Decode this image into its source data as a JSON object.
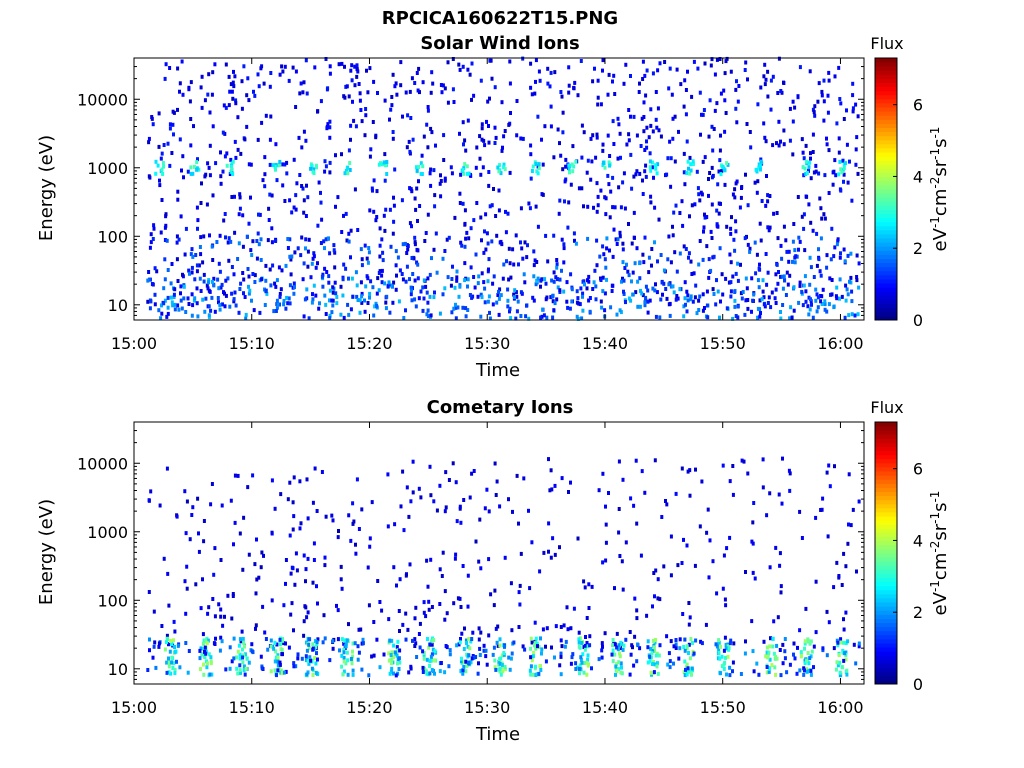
{
  "figure_title": "RPCICA160622T15.PNG",
  "colorbar": {
    "title": "Flux",
    "label_parts": [
      "eV",
      "-1",
      "cm",
      "-2",
      "sr",
      "-1",
      "s",
      "-1"
    ],
    "ticks": [
      "0",
      "2",
      "4",
      "6"
    ],
    "range": [
      0,
      7.3
    ],
    "colormap": "jet"
  },
  "chart_data": [
    {
      "type": "heatmap",
      "title": "Solar Wind Ions",
      "xlabel": "Time",
      "ylabel": "Energy (eV)",
      "yscale": "log",
      "xlim": [
        "15:00",
        "16:02"
      ],
      "ylim": [
        6,
        40000
      ],
      "xticks": [
        "15:00",
        "15:10",
        "15:20",
        "15:30",
        "15:40",
        "15:50",
        "16:00"
      ],
      "yticks": [
        "10",
        "100",
        "1000",
        "10000"
      ],
      "grid": false,
      "features": {
        "background_scatter_energy_range_eV": [
          10,
          40000
        ],
        "background_flux": 0.8,
        "bursts": {
          "energy_eV": 1000,
          "flux": 2.8,
          "times": [
            "15:02",
            "15:05",
            "15:08",
            "15:12",
            "15:15",
            "15:18",
            "15:21",
            "15:24",
            "15:28",
            "15:31",
            "15:34",
            "15:37",
            "15:40",
            "15:44",
            "15:47",
            "15:50",
            "15:53",
            "15:57",
            "16:00"
          ]
        },
        "low_energy_band": {
          "energy_eV": [
            6,
            25
          ],
          "flux": 1.8
        }
      }
    },
    {
      "type": "heatmap",
      "title": "Cometary Ions",
      "xlabel": "Time",
      "ylabel": "Energy (eV)",
      "yscale": "log",
      "xlim": [
        "15:00",
        "16:02"
      ],
      "ylim": [
        6,
        40000
      ],
      "xticks": [
        "15:00",
        "15:10",
        "15:20",
        "15:30",
        "15:40",
        "15:50",
        "16:00"
      ],
      "yticks": [
        "10",
        "100",
        "1000",
        "10000"
      ],
      "grid": false,
      "features": {
        "background_scatter_energy_range_eV": [
          20,
          12000
        ],
        "background_flux": 0.7,
        "low_energy_bursts": {
          "energy_eV": [
            8,
            28
          ],
          "flux": 3.5,
          "times": [
            "15:03",
            "15:06",
            "15:09",
            "15:12",
            "15:15",
            "15:18",
            "15:22",
            "15:25",
            "15:28",
            "15:31",
            "15:34",
            "15:38",
            "15:41",
            "15:44",
            "15:47",
            "15:50",
            "15:54",
            "15:57",
            "16:00"
          ]
        }
      }
    }
  ]
}
